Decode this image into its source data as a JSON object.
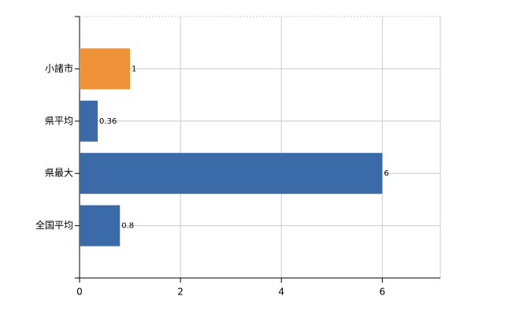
{
  "chart_data": {
    "type": "bar",
    "orientation": "horizontal",
    "categories": [
      "小諸市",
      "県平均",
      "県最大",
      "全国平均"
    ],
    "values": [
      1,
      0.36,
      6,
      0.8
    ],
    "colors": [
      "#f0923a",
      "#3a6aa8",
      "#3a6aa8",
      "#3a6aa8"
    ],
    "xlim": [
      0,
      7.15
    ],
    "xticks": [
      0,
      2,
      4,
      6
    ],
    "grid": true
  }
}
